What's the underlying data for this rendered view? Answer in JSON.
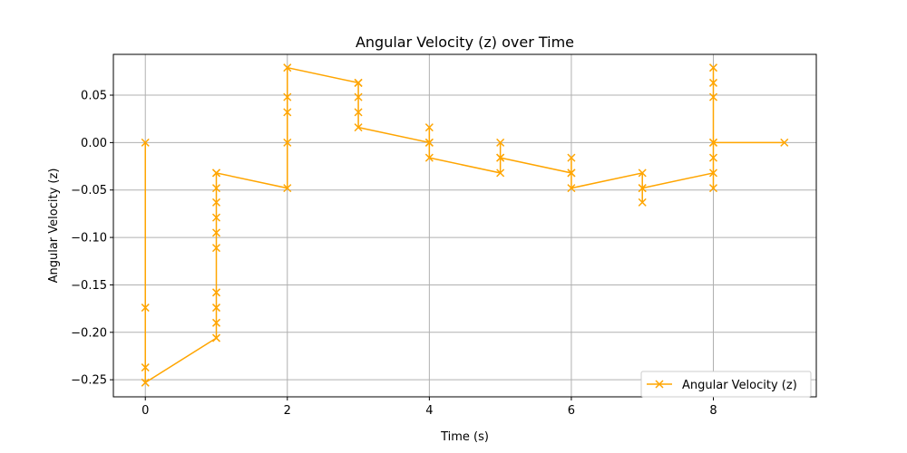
{
  "chart_data": {
    "type": "line",
    "title": "Angular Velocity (z) over Time",
    "xlabel": "Time (s)",
    "ylabel": "Angular Velocity (z)",
    "xlim": [
      -0.45,
      9.45
    ],
    "ylim": [
      -0.268,
      0.093
    ],
    "xticks": [
      0,
      2,
      4,
      6,
      8
    ],
    "yticks": [
      -0.25,
      -0.2,
      -0.15,
      -0.1,
      -0.05,
      0.0,
      0.05
    ],
    "xtick_labels": [
      "0",
      "2",
      "4",
      "6",
      "8"
    ],
    "ytick_labels": [
      "−0.25",
      "−0.20",
      "−0.15",
      "−0.10",
      "−0.05",
      "0.00",
      "0.05"
    ],
    "grid": true,
    "legend_position": "lower-right",
    "series": [
      {
        "name": "Angular Velocity (z)",
        "color": "#ffa500",
        "marker": "x",
        "x": [
          0,
          0,
          0,
          0,
          1,
          1,
          1,
          1,
          1,
          1,
          1,
          1,
          1,
          1,
          1,
          2,
          2,
          2,
          2,
          2,
          3,
          3,
          3,
          3,
          3,
          4,
          4,
          4,
          4,
          5,
          5,
          5,
          5,
          6,
          6,
          6,
          6,
          7,
          7,
          7,
          7,
          8,
          8,
          8,
          8,
          8,
          8,
          8,
          8,
          9
        ],
        "y": [
          0.0,
          -0.174,
          -0.237,
          -0.253,
          -0.206,
          -0.19,
          -0.174,
          -0.158,
          -0.111,
          -0.095,
          -0.079,
          -0.063,
          -0.048,
          -0.032,
          -0.032,
          -0.048,
          0.0,
          0.032,
          0.048,
          0.079,
          0.063,
          0.063,
          0.048,
          0.032,
          0.016,
          0.0,
          0.016,
          0.0,
          -0.016,
          -0.032,
          -0.016,
          0.0,
          -0.016,
          -0.032,
          -0.016,
          -0.032,
          -0.048,
          -0.032,
          -0.063,
          -0.048,
          -0.048,
          -0.032,
          -0.048,
          -0.016,
          0.0,
          0.048,
          0.063,
          0.079,
          0.0,
          0.0
        ]
      }
    ]
  }
}
